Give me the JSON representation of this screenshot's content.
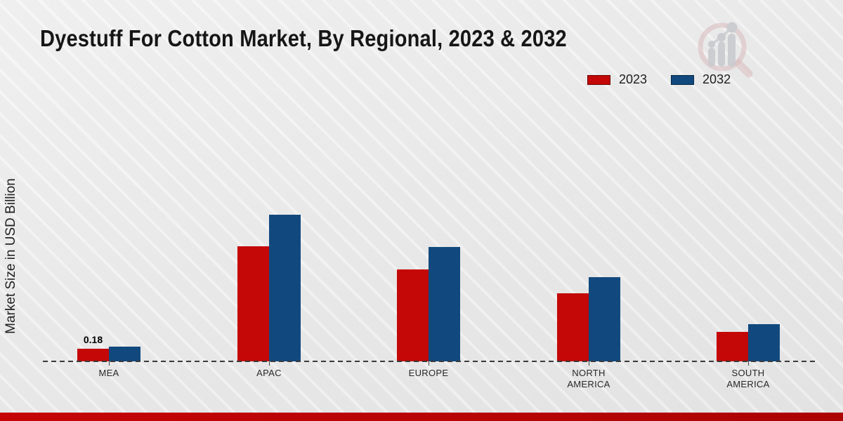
{
  "page": {
    "title": "Dyestuff For Cotton Market, By Regional, 2023 & 2032",
    "ylabel": "Market Size in USD Billion"
  },
  "colors": {
    "series_2023": "#c40707",
    "series_2032": "#11497e",
    "footer_bar": "#bf0404",
    "baseline": "#3a3a3a",
    "background": "#ececec"
  },
  "chart_data": {
    "type": "bar",
    "title": "Dyestuff For Cotton Market, By Regional, 2023 & 2032",
    "xlabel": "",
    "ylabel": "Market Size in USD Billion",
    "categories": [
      "MEA",
      "APAC",
      "EUROPE",
      "NORTH AMERICA",
      "SOUTH AMERICA"
    ],
    "categories_display": [
      [
        "MEA"
      ],
      [
        "APAC"
      ],
      [
        "EUROPE"
      ],
      [
        "NORTH",
        "AMERICA"
      ],
      [
        "SOUTH",
        "AMERICA"
      ]
    ],
    "series": [
      {
        "name": "2023",
        "color": "#c40707",
        "values": [
          0.18,
          1.64,
          1.31,
          0.97,
          0.42
        ]
      },
      {
        "name": "2032",
        "color": "#11497e",
        "values": [
          0.21,
          2.09,
          1.63,
          1.2,
          0.53
        ]
      }
    ],
    "annotations": [
      {
        "series": "2023",
        "category": "MEA",
        "text": "0.18"
      }
    ],
    "ylim": [
      0,
      2.5
    ],
    "y_axis_ticks_visible": false,
    "grid": false,
    "baseline_style": "dashed",
    "legend_position": "top-right"
  },
  "watermark": {
    "icon": "magnifier-bar-chart-logo"
  }
}
